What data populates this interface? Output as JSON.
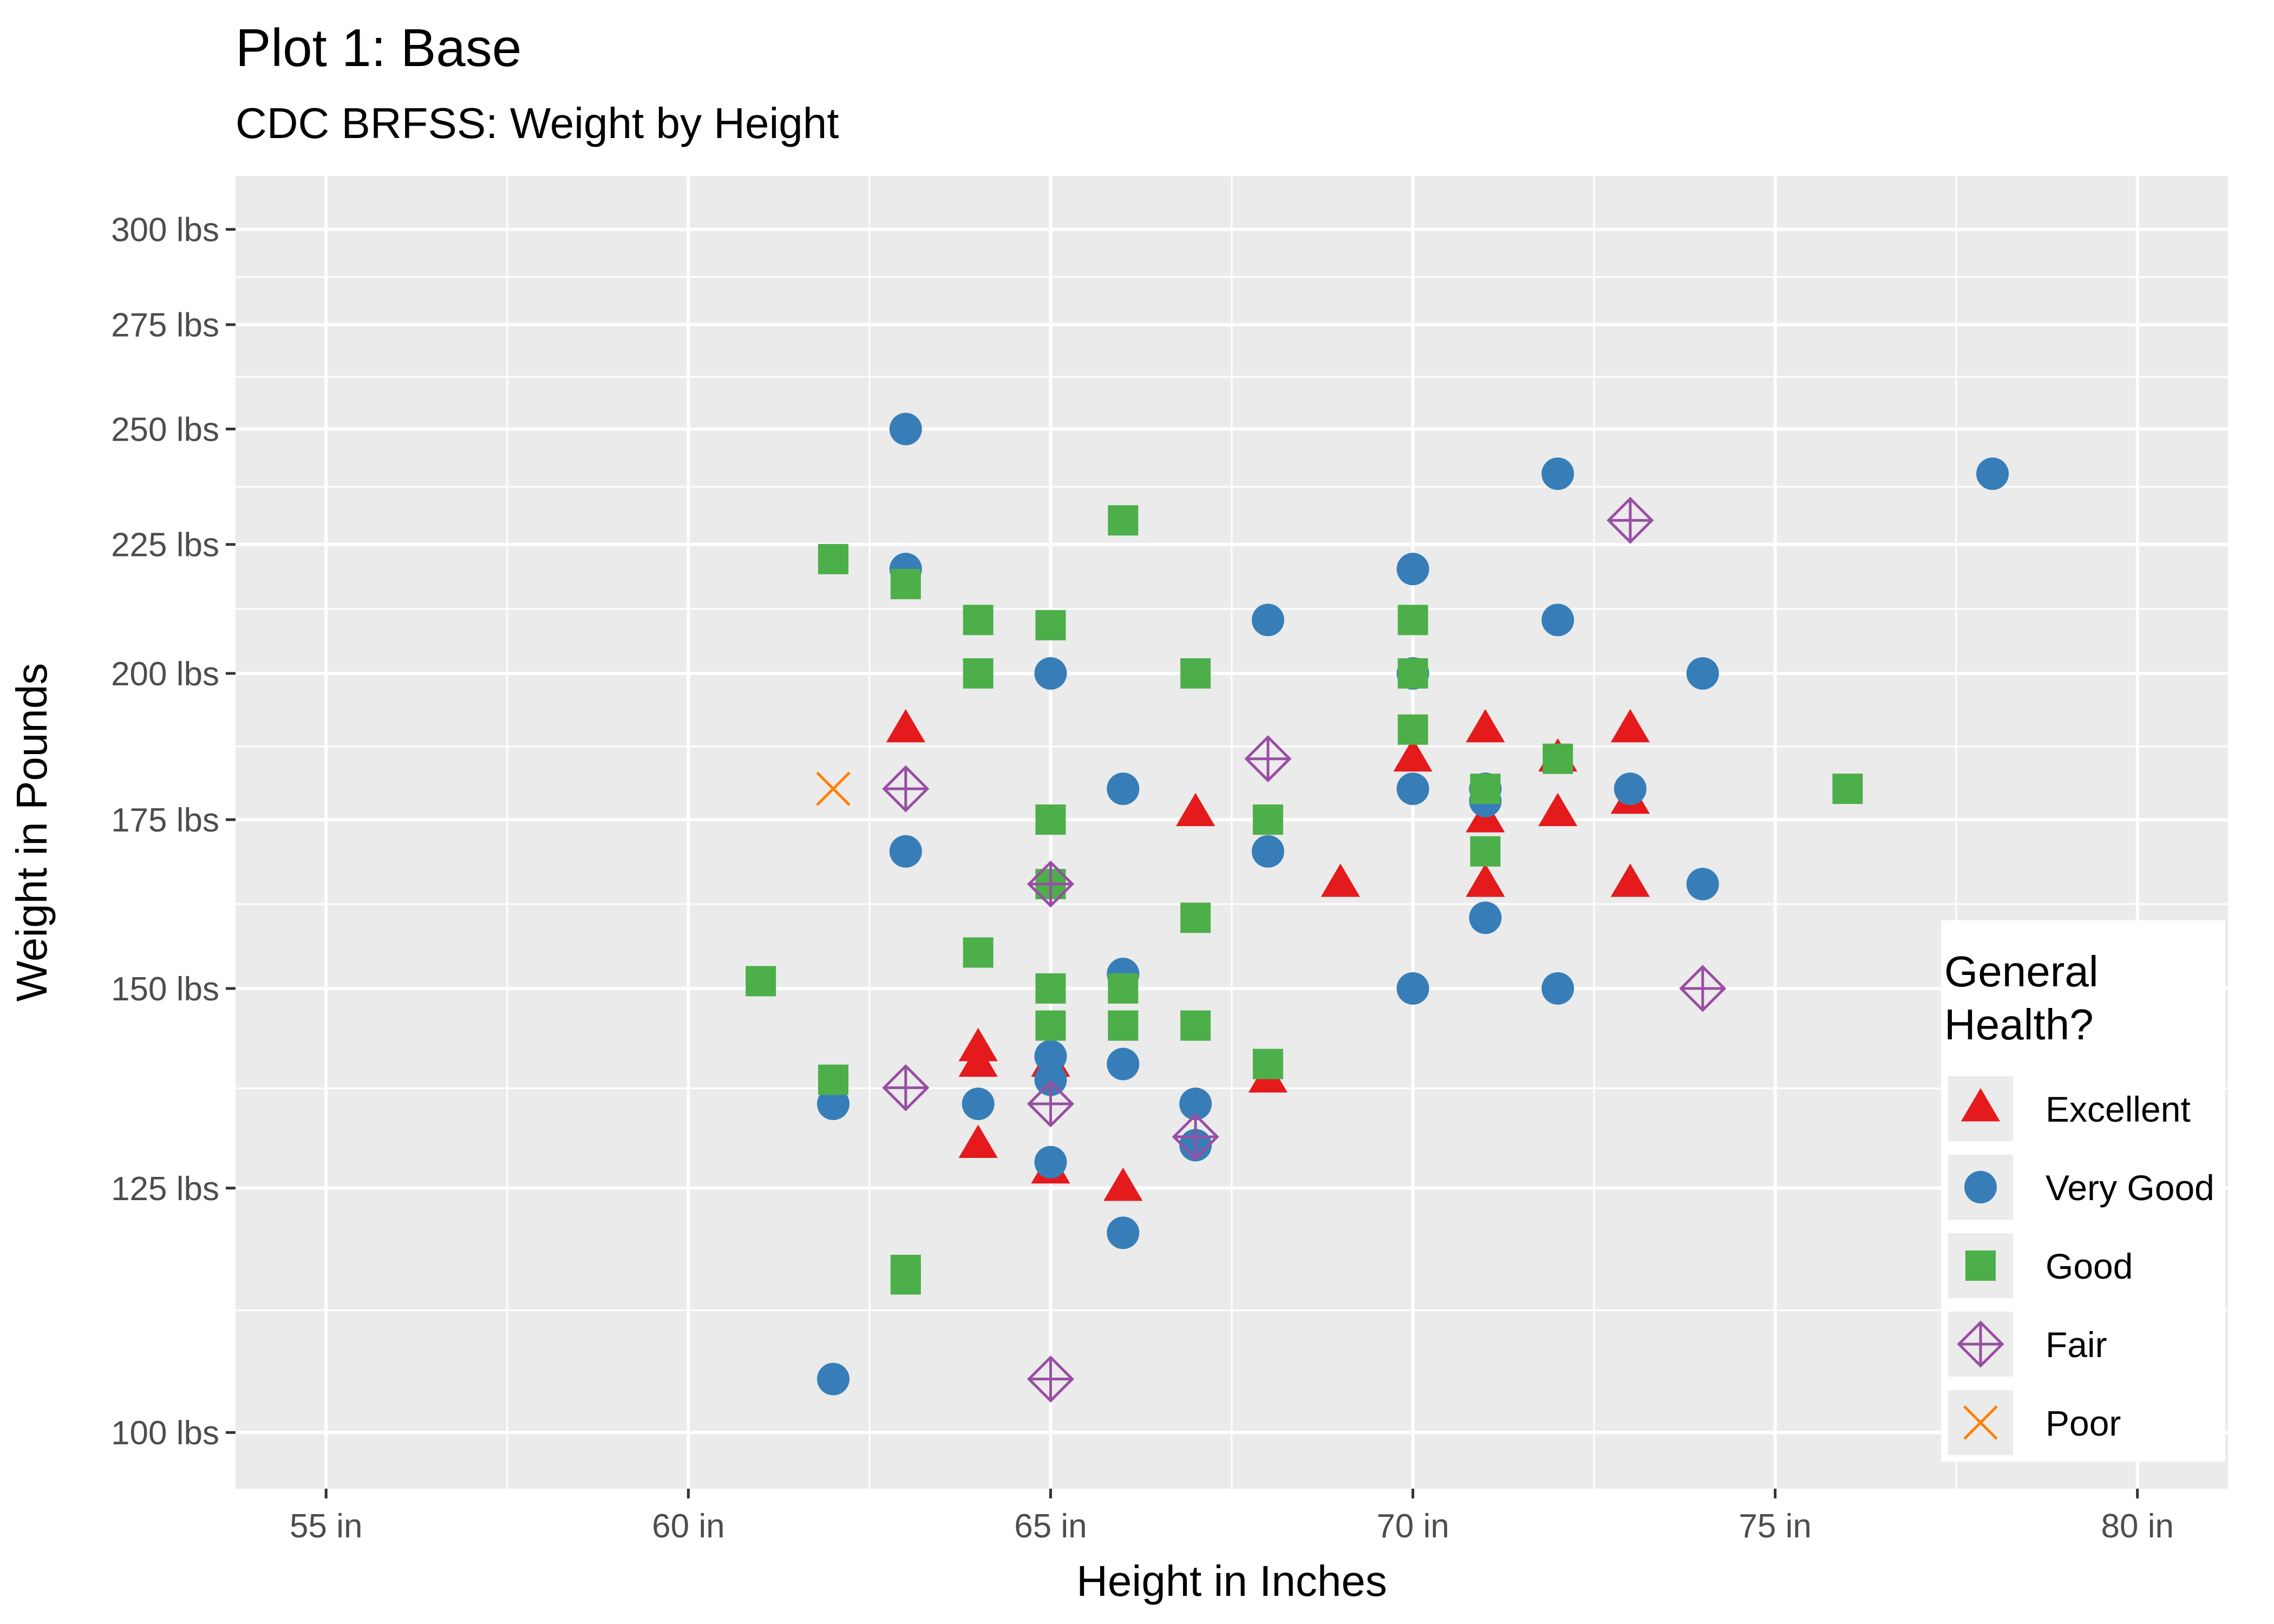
{
  "chart_data": {
    "type": "scatter",
    "title": "Plot 1: Base",
    "subtitle": "CDC BRFSS: Weight by Height",
    "xlabel": "Height in Inches",
    "ylabel": "Weight in Pounds",
    "xlim": [
      53.75,
      81.25
    ],
    "ylim": [
      95,
      315
    ],
    "y_scale": "log",
    "x_ticks": [
      55,
      60,
      65,
      70,
      75,
      80
    ],
    "x_tick_labels": [
      "55 in",
      "60 in",
      "65 in",
      "70 in",
      "75 in",
      "80 in"
    ],
    "y_ticks": [
      100,
      125,
      150,
      175,
      200,
      225,
      250,
      275,
      300
    ],
    "y_tick_labels": [
      "100 lbs",
      "125 lbs",
      "150 lbs",
      "175 lbs",
      "200 lbs",
      "225 lbs",
      "250 lbs",
      "275 lbs",
      "300 lbs"
    ],
    "grid": true,
    "legend": {
      "title": "General Health?",
      "position": "right"
    },
    "series": [
      {
        "name": "Excellent",
        "shape": "triangle",
        "color": "#e41a1c",
        "points": [
          [
            63,
            190
          ],
          [
            64,
            142
          ],
          [
            64,
            140
          ],
          [
            64,
            130
          ],
          [
            65,
            140
          ],
          [
            65,
            127
          ],
          [
            66,
            125
          ],
          [
            67,
            176
          ],
          [
            68,
            138
          ],
          [
            69,
            165
          ],
          [
            70,
            185
          ],
          [
            71,
            190
          ],
          [
            71,
            175
          ],
          [
            71,
            165
          ],
          [
            72,
            185
          ],
          [
            72,
            176
          ],
          [
            73,
            190
          ],
          [
            73,
            178
          ],
          [
            73,
            165
          ]
        ]
      },
      {
        "name": "Very Good",
        "shape": "circle",
        "color": "#377eb8",
        "points": [
          [
            62,
            105
          ],
          [
            62,
            135
          ],
          [
            63,
            250
          ],
          [
            63,
            220
          ],
          [
            63,
            170
          ],
          [
            64,
            135
          ],
          [
            65,
            200
          ],
          [
            65,
            141
          ],
          [
            65,
            138
          ],
          [
            65,
            128
          ],
          [
            66,
            180
          ],
          [
            66,
            152
          ],
          [
            66,
            140
          ],
          [
            66,
            120
          ],
          [
            67,
            135
          ],
          [
            67,
            130
          ],
          [
            68,
            210
          ],
          [
            68,
            170
          ],
          [
            70,
            220
          ],
          [
            70,
            200
          ],
          [
            70,
            180
          ],
          [
            70,
            150
          ],
          [
            71,
            180
          ],
          [
            71,
            178
          ],
          [
            71,
            160
          ],
          [
            72,
            240
          ],
          [
            72,
            210
          ],
          [
            72,
            150
          ],
          [
            73,
            180
          ],
          [
            74,
            200
          ],
          [
            74,
            165
          ],
          [
            78,
            240
          ]
        ]
      },
      {
        "name": "Good",
        "shape": "square",
        "color": "#4daf4a",
        "points": [
          [
            61,
            151
          ],
          [
            62,
            222
          ],
          [
            62,
            138
          ],
          [
            63,
            217
          ],
          [
            63,
            116
          ],
          [
            63,
            115
          ],
          [
            64,
            210
          ],
          [
            64,
            200
          ],
          [
            64,
            155
          ],
          [
            65,
            209
          ],
          [
            65,
            175
          ],
          [
            65,
            165
          ],
          [
            65,
            150
          ],
          [
            65,
            145
          ],
          [
            66,
            230
          ],
          [
            66,
            150
          ],
          [
            66,
            145
          ],
          [
            67,
            200
          ],
          [
            67,
            160
          ],
          [
            67,
            145
          ],
          [
            68,
            175
          ],
          [
            68,
            140
          ],
          [
            70,
            210
          ],
          [
            70,
            200
          ],
          [
            70,
            190
          ],
          [
            71,
            180
          ],
          [
            71,
            170
          ],
          [
            72,
            185
          ],
          [
            76,
            180
          ]
        ]
      },
      {
        "name": "Fair",
        "shape": "diamond-plus",
        "color": "#984ea3",
        "points": [
          [
            63,
            180
          ],
          [
            63,
            137
          ],
          [
            65,
            165
          ],
          [
            65,
            135
          ],
          [
            65,
            105
          ],
          [
            67,
            131
          ],
          [
            68,
            185
          ],
          [
            73,
            230
          ],
          [
            74,
            150
          ]
        ]
      },
      {
        "name": "Poor",
        "shape": "x",
        "color": "#ff7f00",
        "points": [
          [
            62,
            180
          ]
        ]
      }
    ]
  }
}
